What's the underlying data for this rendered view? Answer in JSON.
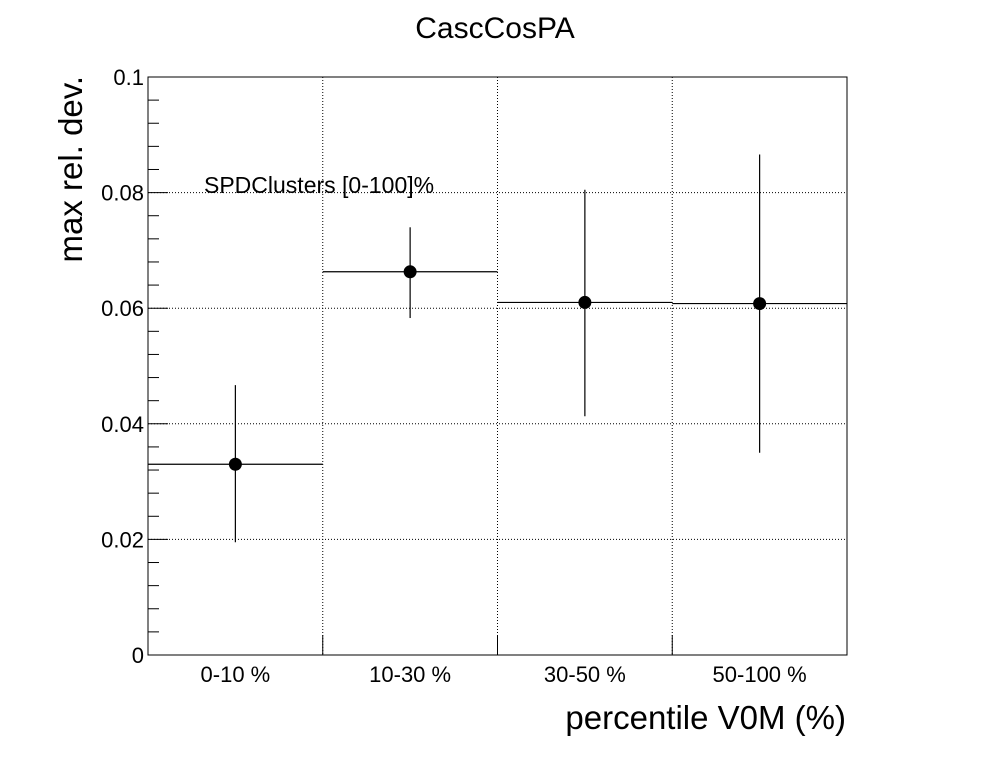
{
  "chart_data": {
    "type": "scatter",
    "title": "CascCosPA",
    "xlabel": "percentile V0M (%)",
    "ylabel": "max rel. dev.",
    "categories": [
      "0-10 %",
      "10-30 %",
      "30-50 %",
      "50-100 %"
    ],
    "annotation": "SPDClusters [0-100]%",
    "ylim": [
      0,
      0.1
    ],
    "y_ticks": [
      "0",
      "0.02",
      "0.04",
      "0.06",
      "0.08",
      "0.1"
    ],
    "grid": true,
    "series": [
      {
        "values": [
          0.033,
          0.0663,
          0.061,
          0.0608
        ],
        "err_low": [
          0.0135,
          0.008,
          0.0197,
          0.0258
        ],
        "err_high": [
          0.0137,
          0.0077,
          0.0195,
          0.0258
        ]
      }
    ]
  }
}
